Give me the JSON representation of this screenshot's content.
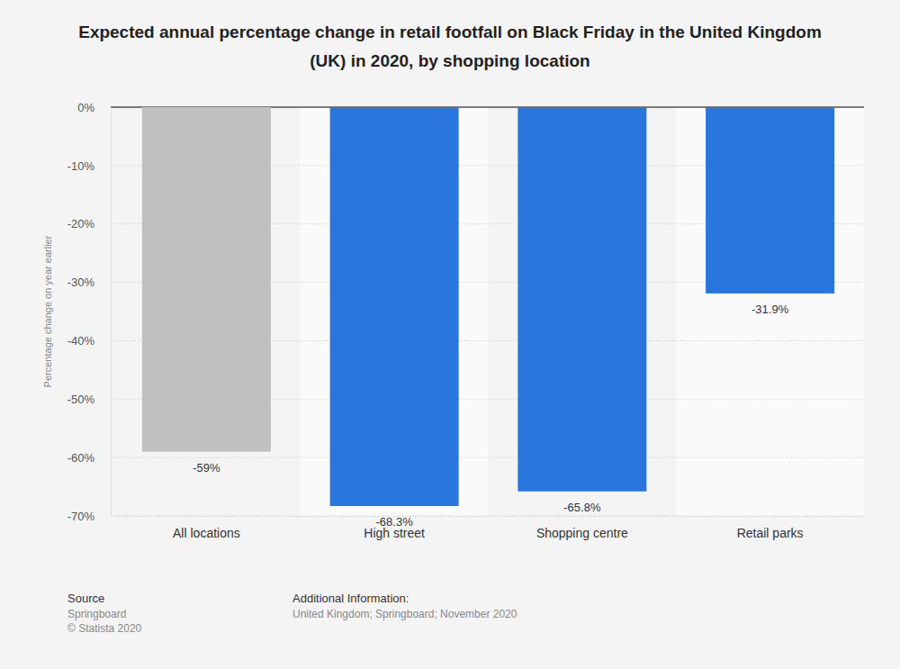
{
  "chart_data": {
    "type": "bar",
    "title": "Expected annual percentage change in retail footfall on Black Friday in the United Kingdom (UK) in 2020, by shopping location",
    "y_label": "Percentage change on year earlier",
    "categories": [
      "All locations",
      "High street",
      "Shopping centre",
      "Retail parks"
    ],
    "values": [
      -59,
      -68.3,
      -65.8,
      -31.9
    ],
    "value_labels": [
      "-59%",
      "-68.3%",
      "-65.8%",
      "-31.9%"
    ],
    "colors": [
      "#c0c0c0",
      "#2876dd",
      "#2876dd",
      "#2876dd"
    ],
    "ylim": [
      -70,
      0
    ],
    "yticks": [
      {
        "value": 0,
        "label": "0%"
      },
      {
        "value": -10,
        "label": "-10%"
      },
      {
        "value": -20,
        "label": "-20%"
      },
      {
        "value": -30,
        "label": "-30%"
      },
      {
        "value": -40,
        "label": "-40%"
      },
      {
        "value": -50,
        "label": "-50%"
      },
      {
        "value": -60,
        "label": "-60%"
      },
      {
        "value": -70,
        "label": "-70%"
      }
    ],
    "grid": true,
    "data_labels": true,
    "annotations": [
      "Source",
      "Springboard",
      "© Statista 2020",
      "Additional Information:",
      "United Kingdom; Springboard; November 2020"
    ]
  }
}
